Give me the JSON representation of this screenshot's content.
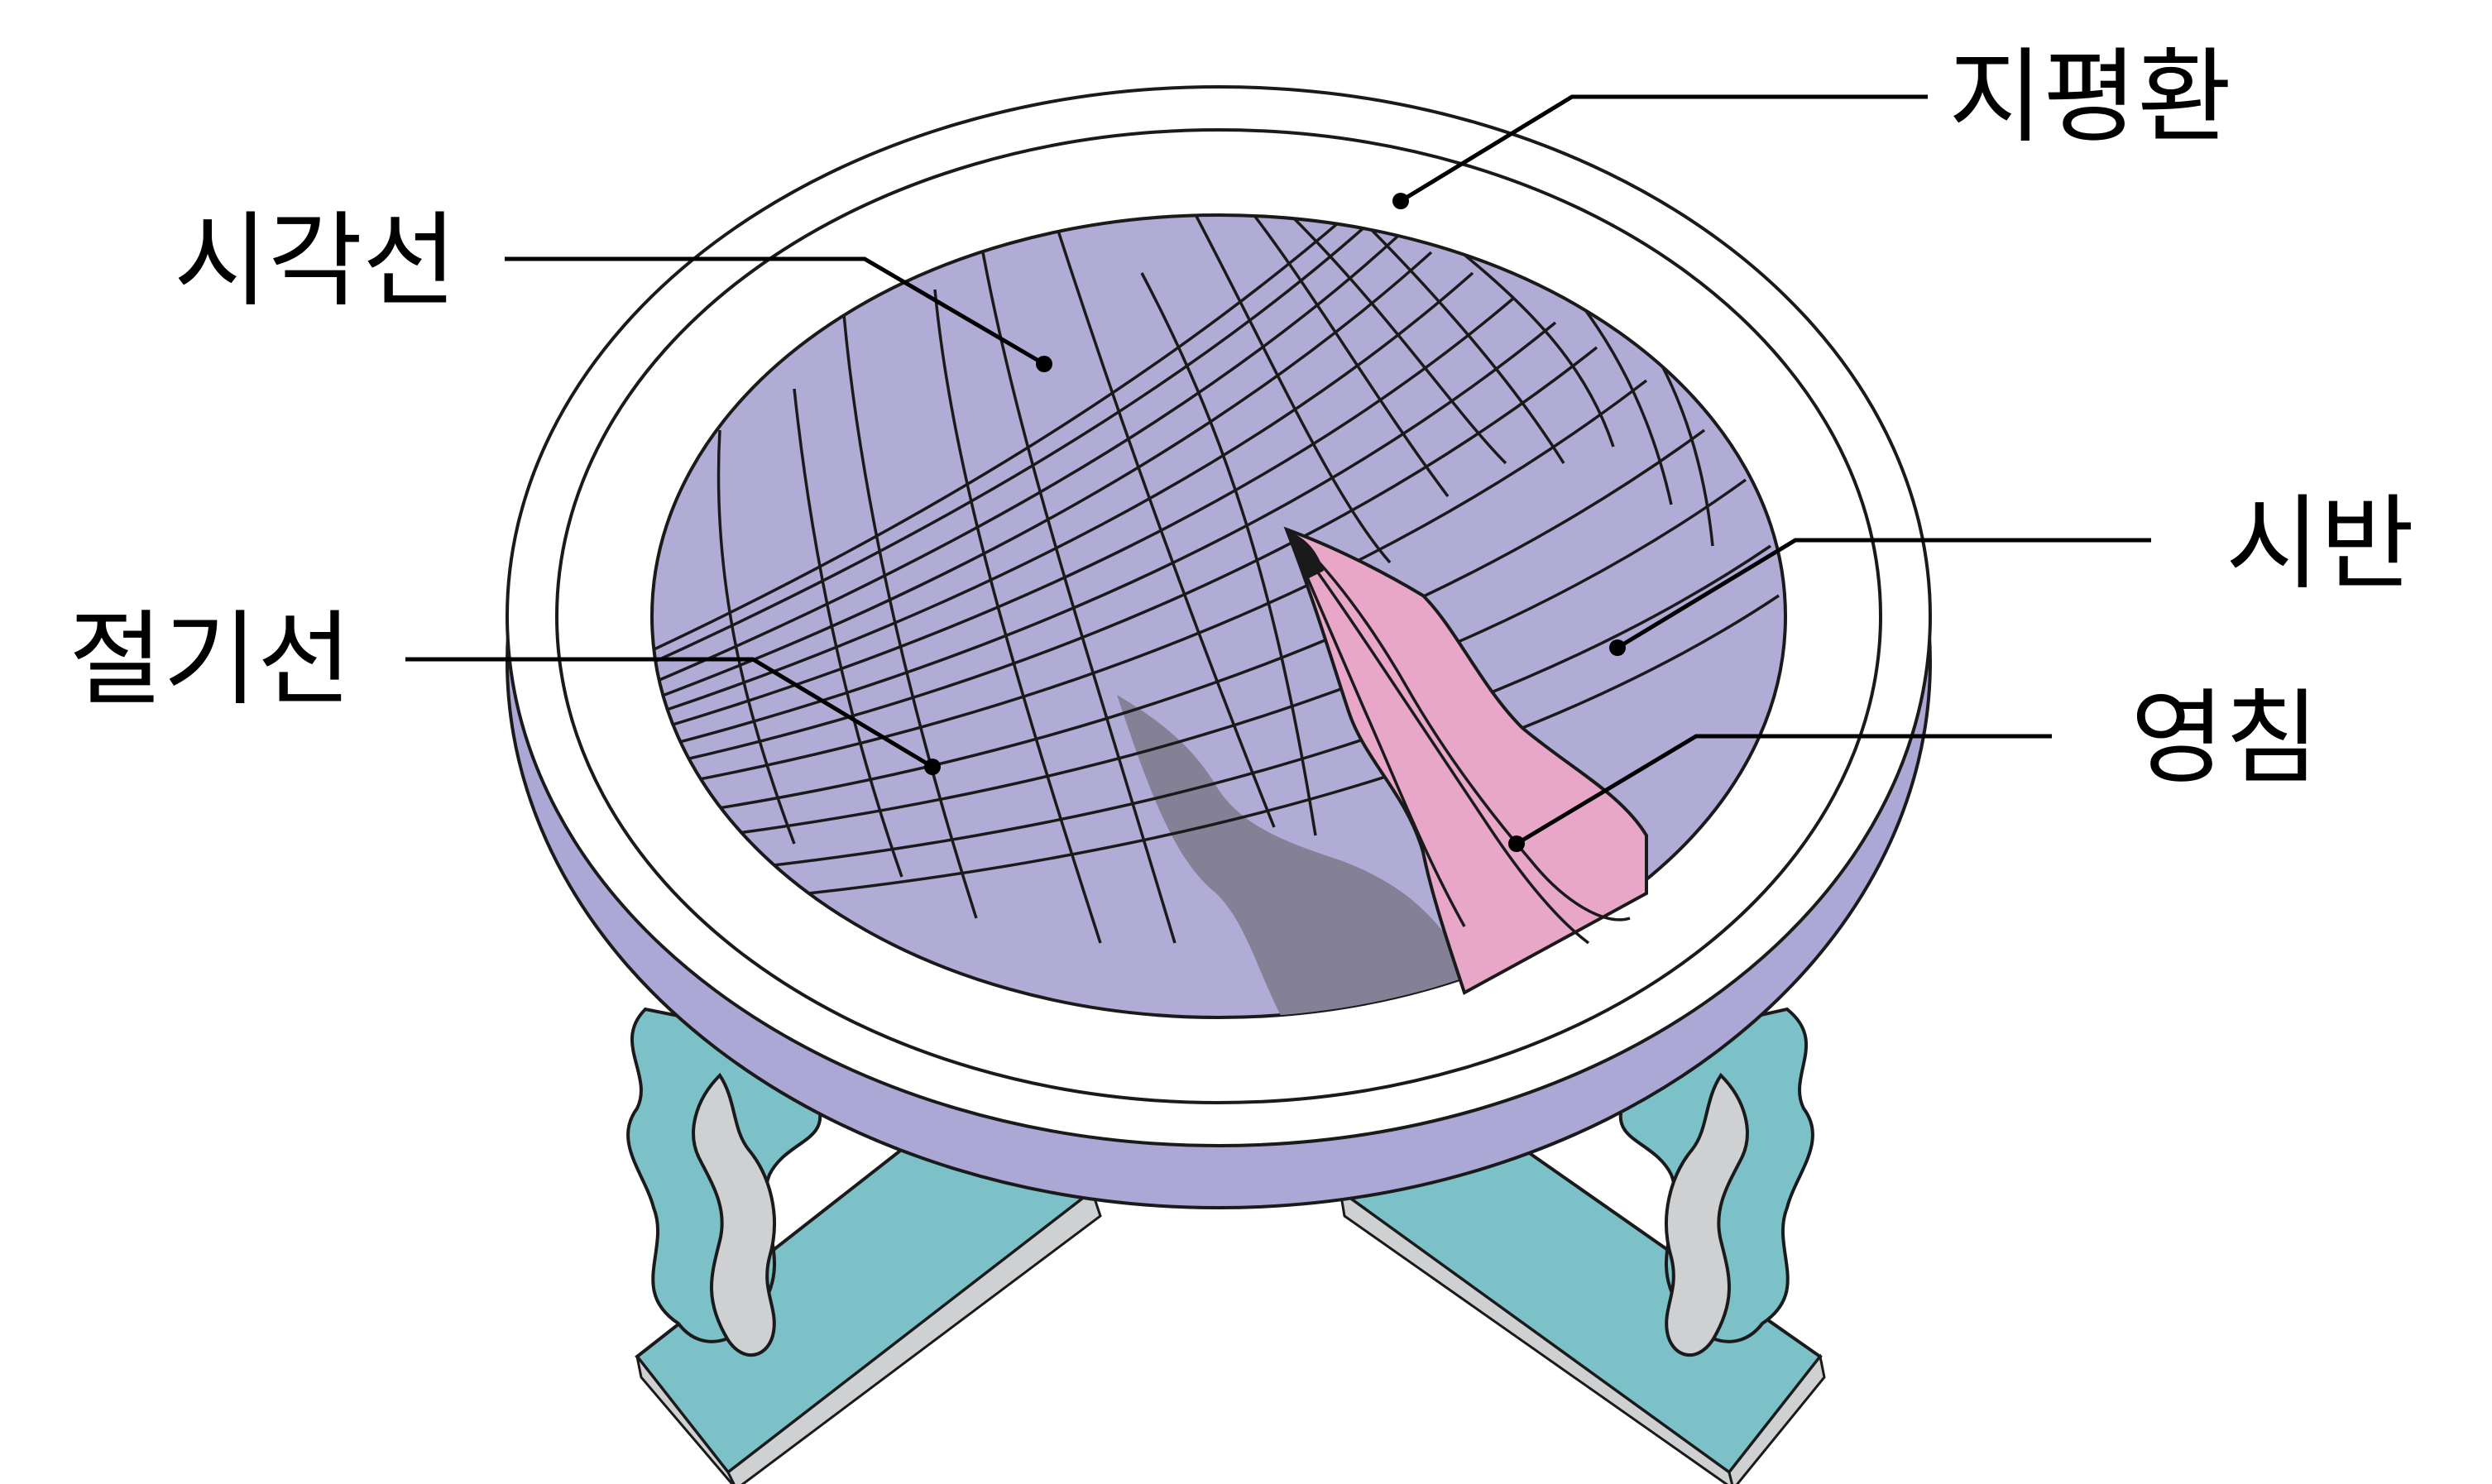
{
  "labels": {
    "horizon_ring": "지평환",
    "hour_lines": "시각선",
    "solar_term_lines": "절기선",
    "dial_plate": "시반",
    "gnomon": "영침"
  },
  "colors": {
    "dial_face": "#b0acd6",
    "base_side": "#aca8d6",
    "ring": "#ffffff",
    "gnomon": "#e8a6c8",
    "shadow": "#848196",
    "legs": "#7cc0c8",
    "bracket": "#cfd0d2",
    "outline": "#1a1a1a"
  }
}
